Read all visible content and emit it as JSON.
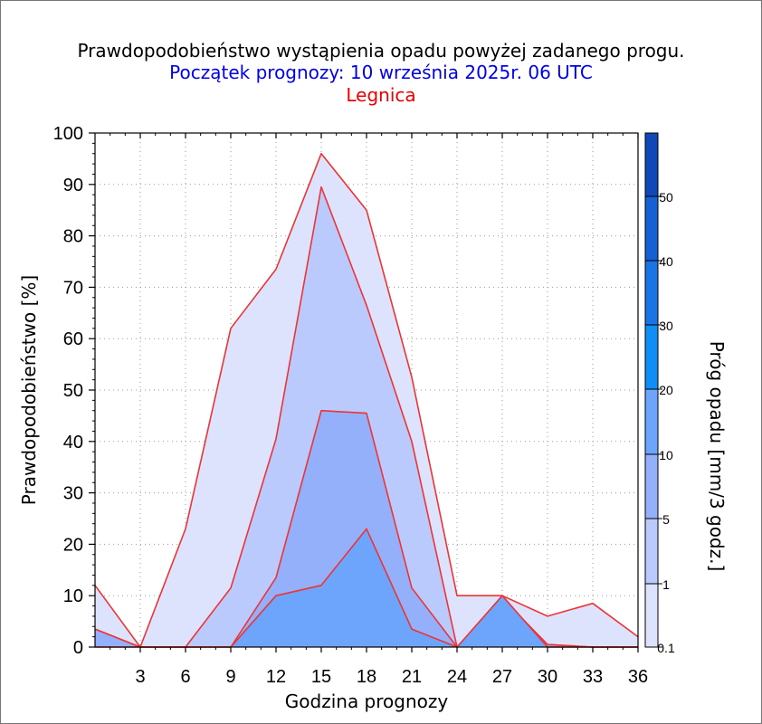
{
  "header": {
    "title": "Prawdopodobieństwo wystąpienia opadu powyżej zadanego progu.",
    "subtitle": "Początek prognozy: 10 września 2025r. 06 UTC",
    "location": "Legnica"
  },
  "colors": {
    "title": "#000000",
    "subtitle": "#0000ee",
    "location": "#ee0000",
    "series_line": "#ee3333"
  },
  "chart_data": {
    "type": "area",
    "xlabel": "Godzina prognozy",
    "ylabel": "Prawdopodobieństwo [%]",
    "colorbar_label": "Próg opadu [mm/3 godz.]",
    "x": [
      0,
      3,
      6,
      9,
      12,
      15,
      18,
      21,
      24,
      27,
      30,
      33,
      36
    ],
    "xticks": [
      "3",
      "6",
      "9",
      "12",
      "15",
      "18",
      "21",
      "24",
      "27",
      "30",
      "33",
      "36"
    ],
    "xlim": [
      0,
      36
    ],
    "ylim": [
      0,
      100
    ],
    "yticks": [
      "0",
      "10",
      "20",
      "30",
      "40",
      "50",
      "60",
      "70",
      "80",
      "90",
      "100"
    ],
    "grid": true,
    "series": [
      {
        "threshold": 0.1,
        "fill": "#dde3fd",
        "values": [
          12,
          0,
          23,
          62,
          73.5,
          96,
          85,
          52.5,
          10,
          10,
          6,
          8.5,
          2
        ]
      },
      {
        "threshold": 1,
        "fill": "#bbcafc",
        "values": [
          3.5,
          0,
          0,
          11.5,
          40.5,
          89.5,
          66.5,
          40,
          0,
          9.5,
          0.5,
          0,
          0
        ]
      },
      {
        "threshold": 5,
        "fill": "#94b0fb",
        "values": [
          3.5,
          0,
          0,
          0,
          13.5,
          46,
          45.5,
          11.5,
          0,
          9.5,
          0.5,
          0,
          0
        ]
      },
      {
        "threshold": 10,
        "fill": "#6ca5fb",
        "values": [
          0,
          0,
          0,
          0,
          10,
          12,
          23,
          3.5,
          0,
          10,
          0,
          0,
          0
        ]
      }
    ],
    "colorbar": {
      "labels": [
        "0.1",
        "1",
        "5",
        "10",
        "20",
        "30",
        "40",
        "50"
      ],
      "bands": [
        "#dde3fd",
        "#bbcafc",
        "#94b0fb",
        "#6ca5fb",
        "#0f8ef5",
        "#1a74e3",
        "#1560d2",
        "#1048b8",
        "#0a3aa3"
      ]
    }
  }
}
